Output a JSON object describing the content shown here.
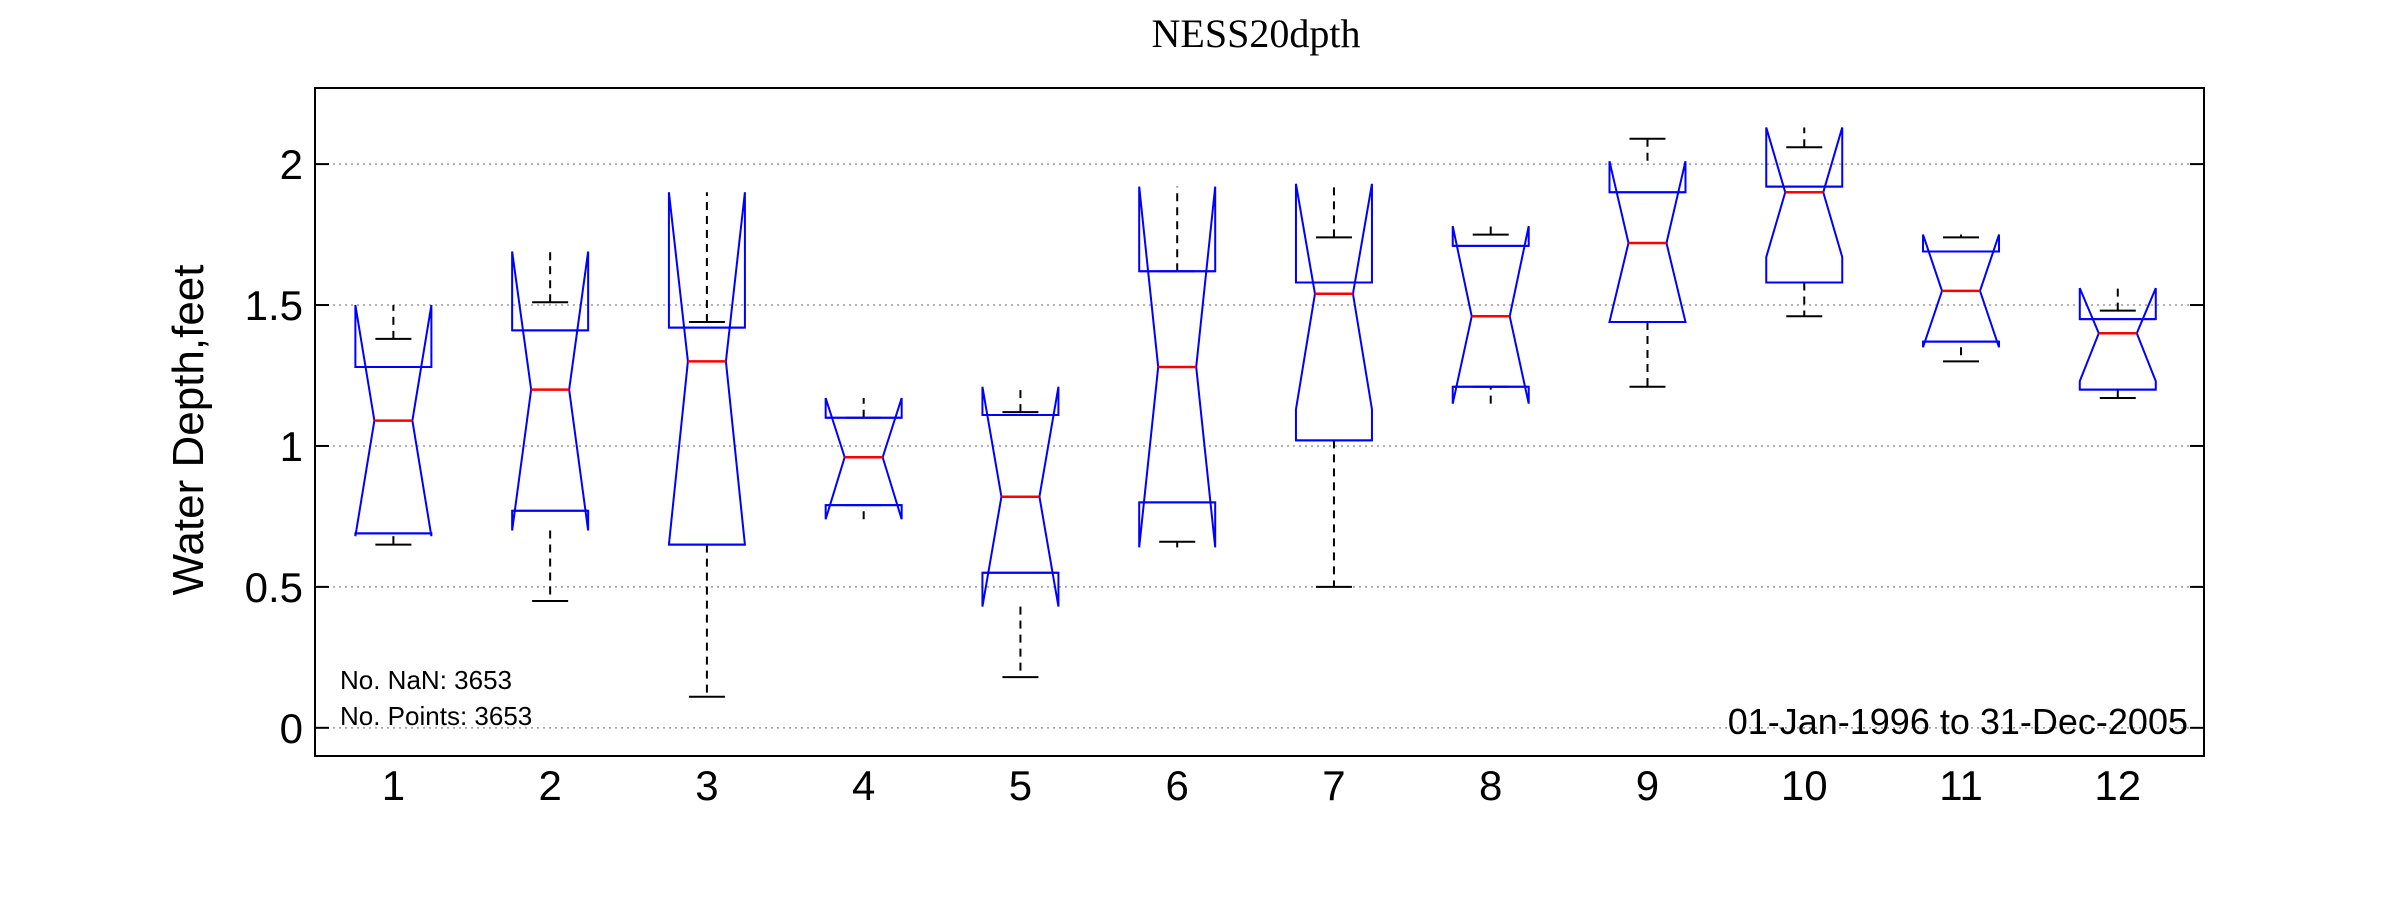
{
  "chart_data": {
    "type": "box",
    "title": "NESS20dpth",
    "xlabel": "",
    "ylabel": "Water Depth,feet",
    "ylim": [
      -0.1,
      2.27
    ],
    "yticks": [
      "0",
      "0.5",
      "1",
      "1.5",
      "2"
    ],
    "ytick_values": [
      0,
      0.5,
      1,
      1.5,
      2
    ],
    "grid": "horizontal dotted",
    "notched": true,
    "colors": {
      "box": "#0000ff",
      "median": "#ff0000",
      "whisker": "#000000",
      "grid": "#9a9a9a"
    },
    "categories": [
      "1",
      "2",
      "3",
      "4",
      "5",
      "6",
      "7",
      "8",
      "9",
      "10",
      "11",
      "12"
    ],
    "boxes": [
      {
        "month": "1",
        "whisker_low": 0.65,
        "q1": 0.69,
        "notch_low": 0.68,
        "median": 1.09,
        "notch_high": 1.5,
        "q3": 1.28,
        "whisker_high": 1.38
      },
      {
        "month": "2",
        "whisker_low": 0.45,
        "q1": 0.77,
        "notch_low": 0.7,
        "median": 1.2,
        "notch_high": 1.69,
        "q3": 1.41,
        "whisker_high": 1.51
      },
      {
        "month": "3",
        "whisker_low": 0.11,
        "q1": 0.65,
        "notch_low": 0.65,
        "median": 1.3,
        "notch_high": 1.9,
        "q3": 1.42,
        "whisker_high": 1.44
      },
      {
        "month": "4",
        "whisker_low": 0.79,
        "q1": 0.79,
        "notch_low": 0.74,
        "median": 0.96,
        "notch_high": 1.17,
        "q3": 1.1,
        "whisker_high": 1.1
      },
      {
        "month": "5",
        "whisker_low": 0.18,
        "q1": 0.55,
        "notch_low": 0.43,
        "median": 0.82,
        "notch_high": 1.21,
        "q3": 1.11,
        "whisker_high": 1.12
      },
      {
        "month": "6",
        "whisker_low": 0.66,
        "q1": 0.8,
        "notch_low": 0.64,
        "median": 1.28,
        "notch_high": 1.92,
        "q3": 1.62,
        "whisker_high": 1.62
      },
      {
        "month": "7",
        "whisker_low": 0.5,
        "q1": 1.02,
        "notch_low": 1.13,
        "median": 1.54,
        "notch_high": 1.93,
        "q3": 1.58,
        "whisker_high": 1.74
      },
      {
        "month": "8",
        "whisker_low": 1.21,
        "q1": 1.21,
        "notch_low": 1.15,
        "median": 1.46,
        "notch_high": 1.78,
        "q3": 1.71,
        "whisker_high": 1.75
      },
      {
        "month": "9",
        "whisker_low": 1.21,
        "q1": 1.44,
        "notch_low": 1.44,
        "median": 1.72,
        "notch_high": 2.01,
        "q3": 1.9,
        "whisker_high": 2.09
      },
      {
        "month": "10",
        "whisker_low": 1.46,
        "q1": 1.58,
        "notch_low": 1.67,
        "median": 1.9,
        "notch_high": 2.13,
        "q3": 1.92,
        "whisker_high": 2.06
      },
      {
        "month": "11",
        "whisker_low": 1.3,
        "q1": 1.37,
        "notch_low": 1.35,
        "median": 1.55,
        "notch_high": 1.75,
        "q3": 1.69,
        "whisker_high": 1.74
      },
      {
        "month": "12",
        "whisker_low": 1.17,
        "q1": 1.2,
        "notch_low": 1.23,
        "median": 1.4,
        "notch_high": 1.56,
        "q3": 1.45,
        "whisker_high": 1.48
      }
    ],
    "annotations": {
      "nan_count": "No. NaN: 3653",
      "point_count": "No. Points: 3653",
      "date_range": "01-Jan-1996 to 31-Dec-2005"
    }
  }
}
